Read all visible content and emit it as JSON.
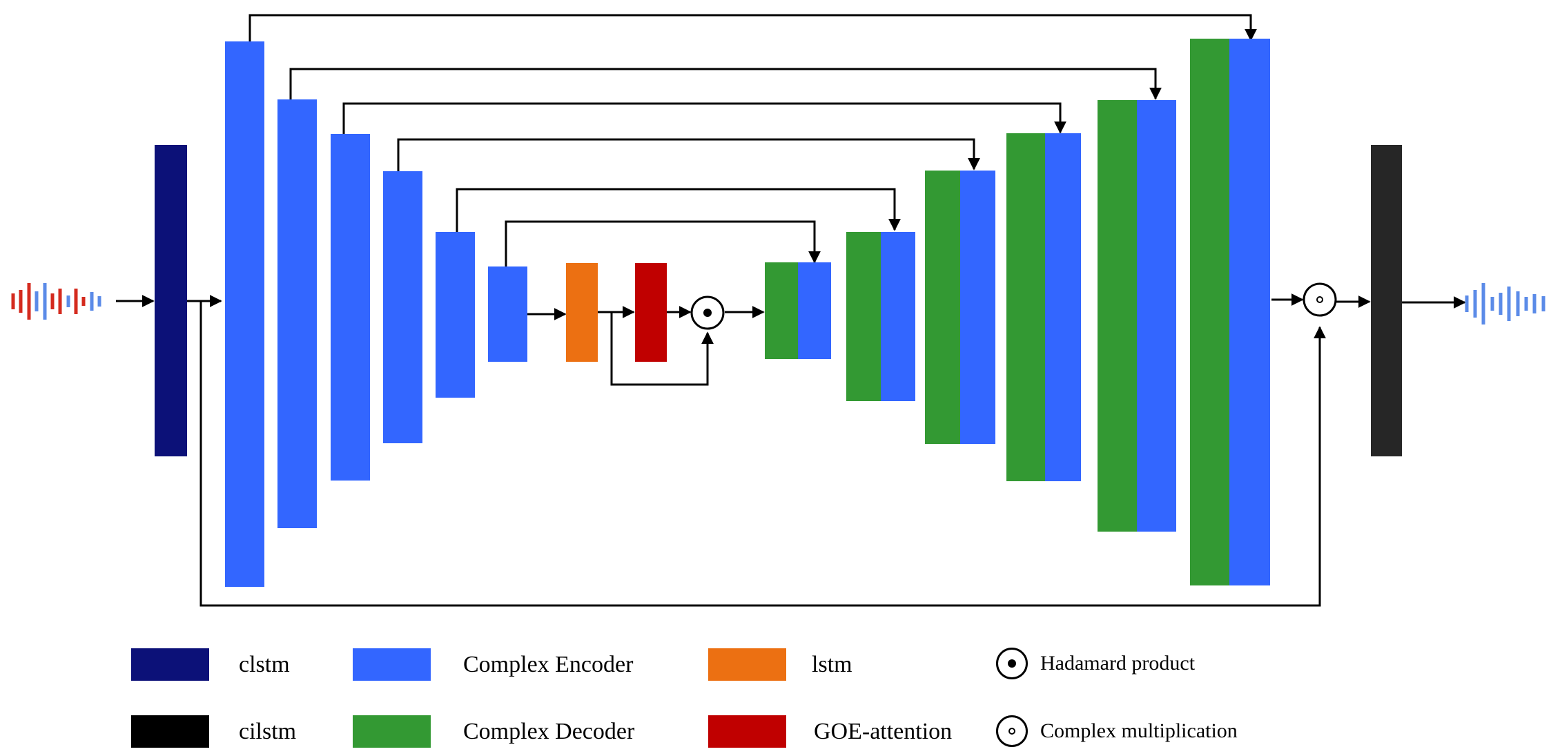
{
  "colors": {
    "clstm": "#0c1178",
    "encoder": "#3366ff",
    "decoder": "#339933",
    "lstm": "#ec7012",
    "attention": "#c00000",
    "cilstm": "#262626",
    "cilstm_swatch": "#000000",
    "wave_in": "#d42a1e",
    "wave_in_alt": "#5b8be8",
    "wave_out": "#5b8be8",
    "line": "#000000"
  },
  "legend": {
    "clstm": "clstm",
    "cilstm": "cilstm",
    "encoder": "Complex Encoder",
    "decoder": "Complex Decoder",
    "lstm": "lstm",
    "attention": "GOE-attention",
    "hadamard": "Hadamard product",
    "complex_mult": "Complex multiplication"
  },
  "icons": {
    "hadamard": "circled-dot-filled",
    "complex_mult": "circled-dot-hollow",
    "input_wave": "waveform",
    "output_wave": "waveform"
  }
}
